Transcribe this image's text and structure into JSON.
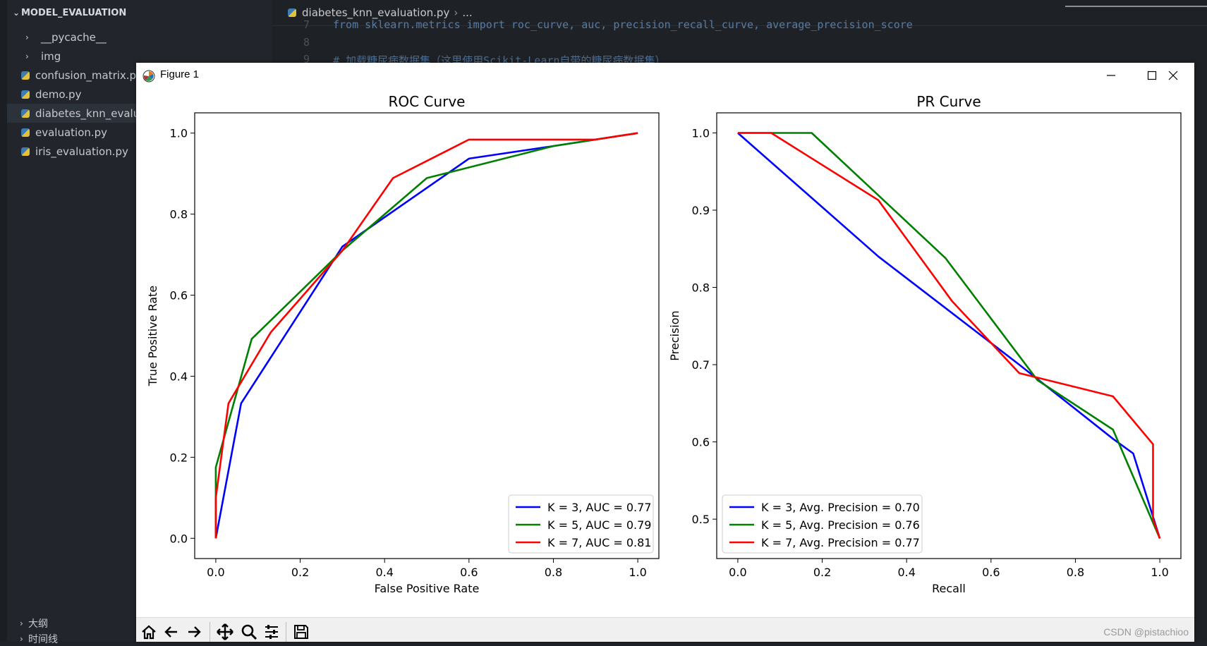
{
  "vscode": {
    "explorer_title": "MODEL_EVALUATION",
    "tree": [
      {
        "label": "__pycache__",
        "type": "folder"
      },
      {
        "label": "img",
        "type": "folder"
      },
      {
        "label": "confusion_matrix.py",
        "type": "py"
      },
      {
        "label": "demo.py",
        "type": "py"
      },
      {
        "label": "diabetes_knn_evaluation.py",
        "type": "py",
        "selected": true
      },
      {
        "label": "evaluation.py",
        "type": "py"
      },
      {
        "label": "iris_evaluation.py",
        "type": "py"
      }
    ],
    "outline_label": "大纲",
    "timeline_label": "时间线",
    "tab_label": "diabetes_knn_evaluation.py",
    "breadcrumb_more": "...",
    "code_lines": [
      {
        "no": "7",
        "text": "from sklearn.metrics import roc_curve, auc, precision_recall_curve, average_precision_score"
      },
      {
        "no": "8",
        "text": ""
      },
      {
        "no": "9",
        "text": "# 加载糖尿病数据集（这里使用Scikit-Learn自带的糖尿病数据集）"
      }
    ]
  },
  "window": {
    "title": "Figure 1",
    "minimize_icon": "minimize-icon",
    "maximize_icon": "maximize-icon",
    "close_icon": "close-icon"
  },
  "toolbar_icons": [
    "home-icon",
    "back-icon",
    "forward-icon",
    "pan-icon",
    "zoom-icon",
    "configure-subplots-icon",
    "save-icon"
  ],
  "watermark": "CSDN @pistachioo",
  "colors": {
    "k3": "#0000ff",
    "k5": "#008000",
    "k7": "#ff0000"
  },
  "chart_data": [
    {
      "type": "line",
      "title": "ROC Curve",
      "xlabel": "False Positive Rate",
      "ylabel": "True Positive Rate",
      "xlim": [
        -0.05,
        1.05
      ],
      "ylim": [
        -0.05,
        1.05
      ],
      "xticks": [
        "0.0",
        "0.2",
        "0.4",
        "0.6",
        "0.8",
        "1.0"
      ],
      "yticks": [
        "0.0",
        "0.2",
        "0.4",
        "0.6",
        "0.8",
        "1.0"
      ],
      "xtick_values": [
        0,
        0.2,
        0.4,
        0.6,
        0.8,
        1.0
      ],
      "ytick_values": [
        0,
        0.2,
        0.4,
        0.6,
        0.8,
        1.0
      ],
      "legend_position": "lower right",
      "series": [
        {
          "name": "K = 3, AUC = 0.77",
          "color": "#0000ff",
          "points": [
            [
              0,
              0
            ],
            [
              0.06,
              0.333
            ],
            [
              0.3,
              0.72
            ],
            [
              0.6,
              0.937
            ],
            [
              0.8,
              0.968
            ],
            [
              1,
              1
            ]
          ]
        },
        {
          "name": "K = 5, AUC = 0.79",
          "color": "#008000",
          "points": [
            [
              0,
              0
            ],
            [
              0,
              0.175
            ],
            [
              0.085,
              0.492
            ],
            [
              0.3,
              0.71
            ],
            [
              0.5,
              0.889
            ],
            [
              0.8,
              0.968
            ],
            [
              1,
              1
            ]
          ]
        },
        {
          "name": "K = 7, AUC = 0.81",
          "color": "#ff0000",
          "points": [
            [
              0,
              0
            ],
            [
              0,
              0.1
            ],
            [
              0.03,
              0.333
            ],
            [
              0.13,
              0.508
            ],
            [
              0.3,
              0.71
            ],
            [
              0.42,
              0.889
            ],
            [
              0.6,
              0.984
            ],
            [
              0.9,
              0.984
            ],
            [
              1,
              1
            ]
          ]
        }
      ]
    },
    {
      "type": "line",
      "title": "PR Curve",
      "xlabel": "Recall",
      "ylabel": "Precision",
      "xlim": [
        -0.05,
        1.05
      ],
      "ylim": [
        0.449,
        1.026
      ],
      "xticks": [
        "0.0",
        "0.2",
        "0.4",
        "0.6",
        "0.8",
        "1.0"
      ],
      "yticks": [
        "0.5",
        "0.6",
        "0.7",
        "0.8",
        "0.9",
        "1.0"
      ],
      "xtick_values": [
        0,
        0.2,
        0.4,
        0.6,
        0.8,
        1.0
      ],
      "ytick_values": [
        0.5,
        0.6,
        0.7,
        0.8,
        0.9,
        1.0
      ],
      "legend_position": "lower left",
      "series": [
        {
          "name": "K = 3, Avg. Precision = 0.70",
          "color": "#0000ff",
          "points": [
            [
              0,
              1.0
            ],
            [
              0.333,
              0.84
            ],
            [
              0.667,
              0.7
            ],
            [
              0.889,
              0.604
            ],
            [
              0.937,
              0.585
            ],
            [
              1,
              0.475
            ]
          ]
        },
        {
          "name": "K = 5, Avg. Precision = 0.76",
          "color": "#008000",
          "points": [
            [
              0,
              1.0
            ],
            [
              0.175,
              1.0
            ],
            [
              0.492,
              0.838
            ],
            [
              0.71,
              0.68
            ],
            [
              0.889,
              0.616
            ],
            [
              1,
              0.475
            ]
          ]
        },
        {
          "name": "K = 7, Avg. Precision = 0.77",
          "color": "#ff0000",
          "points": [
            [
              0,
              1.0
            ],
            [
              0.079,
              1.0
            ],
            [
              0.333,
              0.913
            ],
            [
              0.508,
              0.782
            ],
            [
              0.667,
              0.689
            ],
            [
              0.889,
              0.659
            ],
            [
              0.984,
              0.597
            ],
            [
              0.984,
              0.5
            ],
            [
              1,
              0.475
            ]
          ]
        }
      ]
    }
  ]
}
